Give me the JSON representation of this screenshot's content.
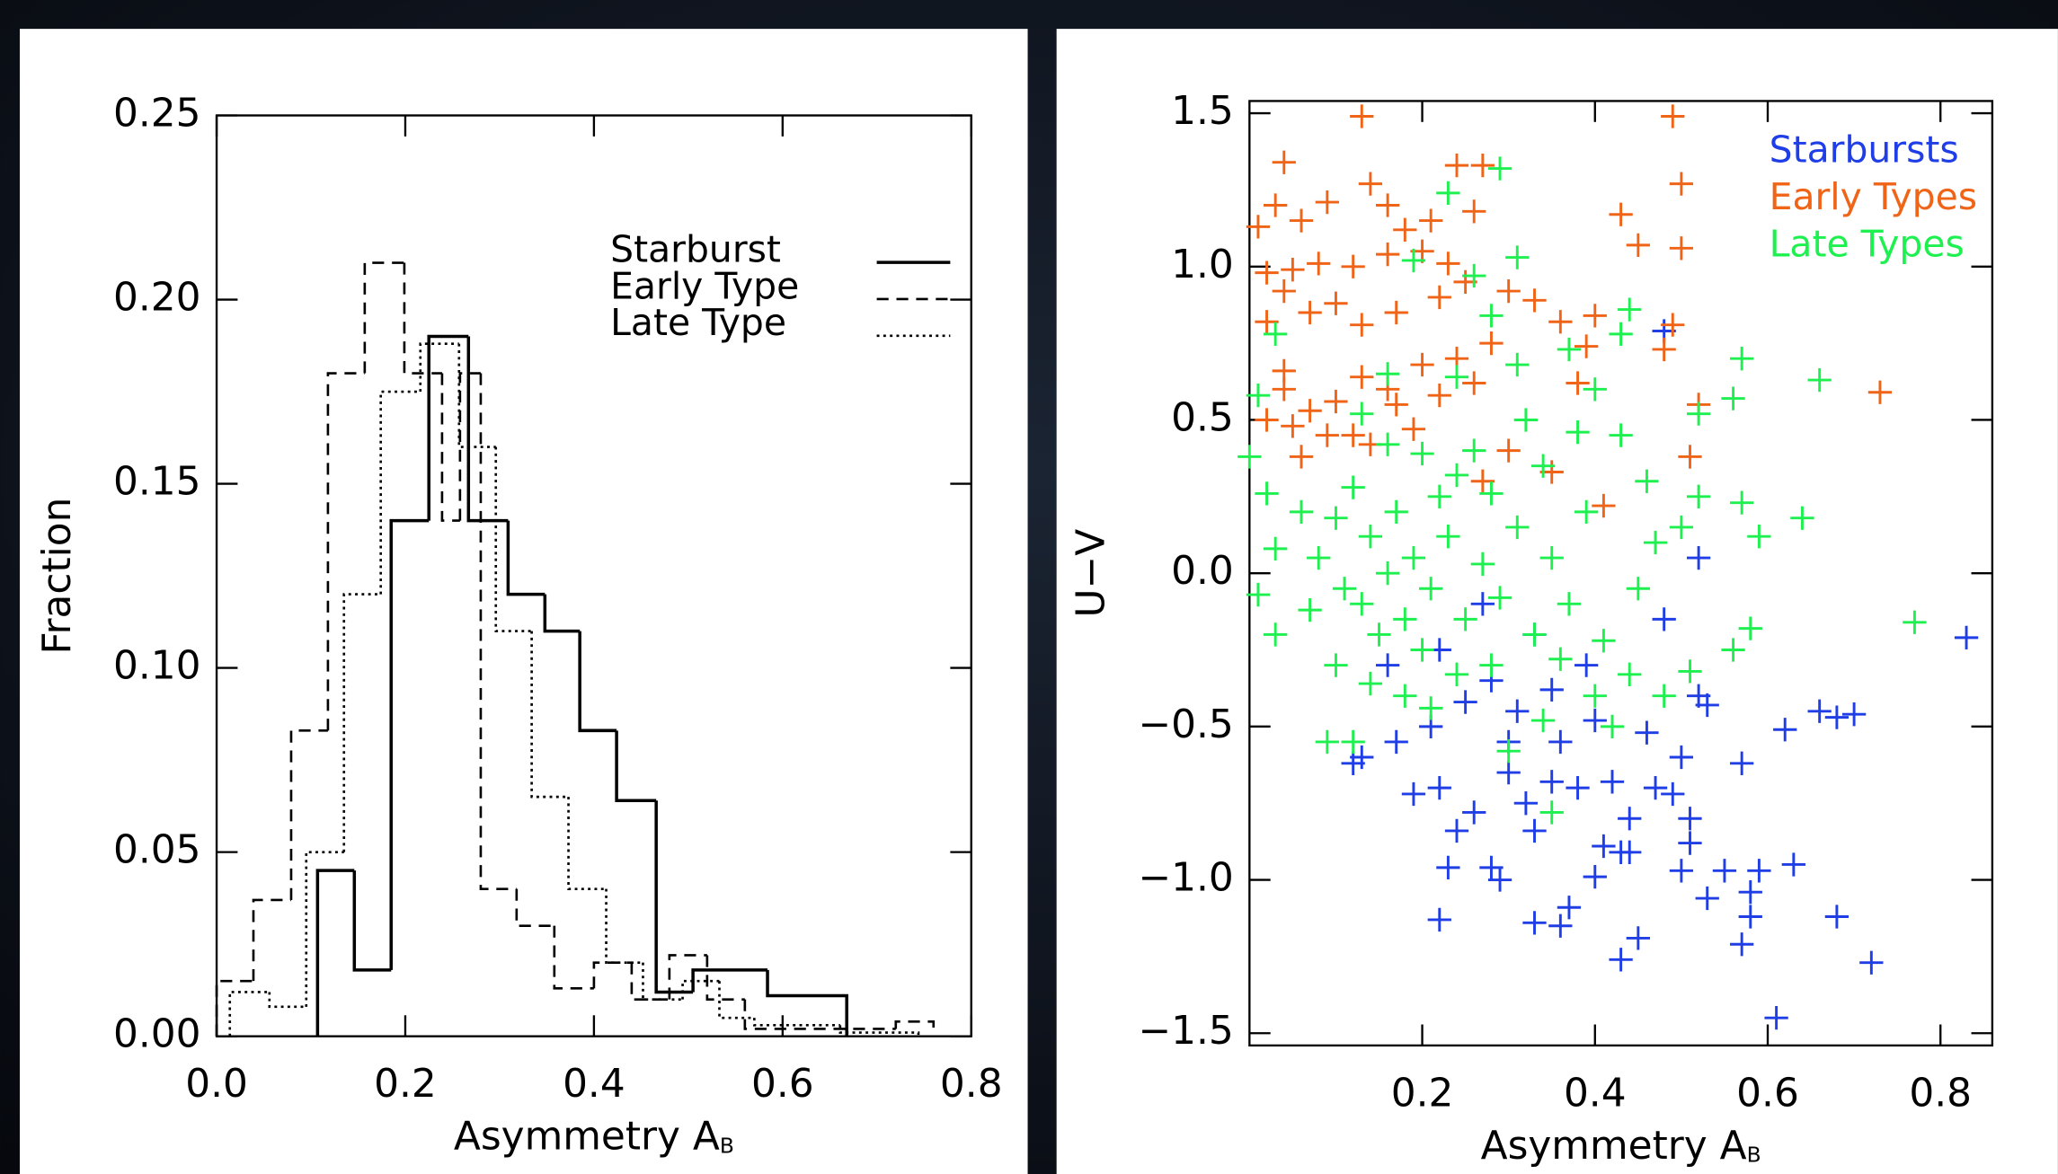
{
  "chart_data": [
    {
      "type": "histogram",
      "xlabel": "Asymmetry A",
      "xlabel_subscript": "B",
      "ylabel": "Fraction",
      "xlim": [
        0,
        0.8
      ],
      "ylim": [
        0,
        0.25
      ],
      "xticks": [
        {
          "value": 0,
          "label": "0.0"
        },
        0.2,
        0.4,
        0.6,
        0.8
      ],
      "yticks": [
        {
          "value": 0,
          "label": "0.00"
        },
        0.05,
        {
          "value": 0.1,
          "label": "0.10"
        },
        0.15,
        {
          "value": 0.2,
          "label": "0.20"
        },
        0.25
      ],
      "legend": "upper right",
      "series": [
        {
          "name": "Starburst",
          "color": "#000000",
          "style": "solid",
          "bins": [
            0.107,
            0.146,
            0.185,
            0.225,
            0.267,
            0.309,
            0.348,
            0.385,
            0.424,
            0.466,
            0.505,
            0.584,
            0.668
          ],
          "values": [
            0.045,
            0.018,
            0.14,
            0.19,
            0.14,
            0.12,
            0.11,
            0.083,
            0.064,
            0.012,
            0.018,
            0.011
          ]
        },
        {
          "name": "Early Type",
          "color": "#000000",
          "style": "dashed",
          "bins": [
            0,
            0.039,
            0.079,
            0.118,
            0.157,
            0.199,
            0.239,
            0.258,
            0.28,
            0.318,
            0.358,
            0.4,
            0.44,
            0.48,
            0.52,
            0.56,
            0.72,
            0.76
          ],
          "values": [
            0.015,
            0.037,
            0.083,
            0.18,
            0.21,
            0.18,
            0.14,
            0.18,
            0.04,
            0.03,
            0.013,
            0.02,
            0.01,
            0.022,
            0.01,
            0.002,
            0.004
          ]
        },
        {
          "name": "Late Type",
          "color": "#000000",
          "style": "dotted",
          "bins": [
            0.014,
            0.056,
            0.095,
            0.135,
            0.174,
            0.216,
            0.257,
            0.296,
            0.334,
            0.373,
            0.413,
            0.452,
            0.494,
            0.533,
            0.57,
            0.661,
            0.744
          ],
          "values": [
            0.012,
            0.008,
            0.05,
            0.12,
            0.175,
            0.188,
            0.16,
            0.11,
            0.065,
            0.04,
            0.02,
            0.01,
            0.015,
            0.005,
            0.003,
            0.001
          ]
        }
      ]
    },
    {
      "type": "scatter",
      "xlabel": "Asymmetry A",
      "xlabel_subscript": "B",
      "ylabel": "U−V",
      "xlim": [
        0,
        0.86
      ],
      "ylim": [
        -1.54,
        1.54
      ],
      "xticks": [
        0.2,
        0.4,
        0.6,
        0.8
      ],
      "yticks": [
        {
          "value": -1.5,
          "label": "−1.5"
        },
        {
          "value": -1,
          "label": "−1.0"
        },
        {
          "value": -0.5,
          "label": "−0.5"
        },
        {
          "value": 0,
          "label": "0.0"
        },
        0.5,
        {
          "value": 1,
          "label": "1.0"
        },
        1.5
      ],
      "legend": "upper right",
      "series": [
        {
          "name": "Starbursts",
          "color": "#1f3ee6",
          "x": [
            0.83,
            0.61,
            0.72,
            0.68,
            0.57,
            0.58,
            0.58,
            0.59,
            0.63,
            0.55,
            0.66,
            0.68,
            0.7,
            0.62,
            0.57,
            0.53,
            0.5,
            0.51,
            0.45,
            0.43,
            0.43,
            0.44,
            0.4,
            0.41,
            0.44,
            0.37,
            0.36,
            0.33,
            0.29,
            0.28,
            0.23,
            0.22,
            0.24,
            0.22,
            0.19,
            0.26,
            0.3,
            0.32,
            0.33,
            0.35,
            0.38,
            0.42,
            0.47,
            0.49,
            0.51,
            0.5,
            0.46,
            0.52,
            0.53,
            0.52,
            0.48,
            0.48,
            0.13,
            0.12,
            0.17,
            0.21,
            0.25,
            0.28,
            0.31,
            0.35,
            0.39,
            0.33,
            0.27,
            0.22,
            0.36,
            0.4,
            0.16,
            0.3
          ],
          "y": [
            -0.21,
            -1.45,
            -1.27,
            -1.12,
            -1.21,
            -1.12,
            -1.04,
            -0.97,
            -0.95,
            -0.97,
            -0.45,
            -0.47,
            -0.46,
            -0.51,
            -0.62,
            -1.06,
            -0.97,
            -0.88,
            -1.19,
            -1.26,
            -0.91,
            -0.91,
            -0.99,
            -0.89,
            -0.8,
            -1.09,
            -1.15,
            -1.14,
            -1.0,
            -0.96,
            -0.96,
            -1.13,
            -0.84,
            -0.7,
            -0.72,
            -0.78,
            -0.65,
            -0.75,
            -0.84,
            -0.68,
            -0.7,
            -0.68,
            -0.7,
            -0.72,
            -0.8,
            -0.6,
            -0.52,
            -0.4,
            -0.43,
            0.05,
            -0.15,
            0.79,
            -0.6,
            -0.62,
            -0.55,
            -0.5,
            -0.42,
            -0.35,
            -0.45,
            -0.38,
            -0.3,
            -0.2,
            -0.1,
            -0.25,
            -0.55,
            -0.48,
            -0.3,
            -0.55
          ]
        },
        {
          "name": "Early Types",
          "color": "#f06418",
          "x": [
            0.04,
            0.13,
            0.49,
            0.03,
            0.01,
            0.06,
            0.09,
            0.14,
            0.16,
            0.18,
            0.21,
            0.24,
            0.27,
            0.26,
            0.23,
            0.2,
            0.16,
            0.12,
            0.08,
            0.05,
            0.02,
            0.04,
            0.07,
            0.1,
            0.13,
            0.17,
            0.22,
            0.25,
            0.3,
            0.33,
            0.36,
            0.28,
            0.24,
            0.2,
            0.16,
            0.13,
            0.1,
            0.07,
            0.04,
            0.02,
            0.06,
            0.12,
            0.17,
            0.22,
            0.26,
            0.3,
            0.35,
            0.41,
            0.45,
            0.5,
            0.43,
            0.5,
            0.49,
            0.48,
            0.51,
            0.73,
            0.52,
            0.39,
            0.38,
            0.4,
            0.02,
            0.04,
            0.05,
            0.09,
            0.14,
            0.19,
            0.27
          ],
          "y": [
            1.34,
            1.49,
            1.49,
            1.2,
            1.13,
            1.15,
            1.21,
            1.27,
            1.2,
            1.12,
            1.15,
            1.33,
            1.33,
            1.18,
            1.01,
            1.05,
            1.04,
            1.0,
            1.01,
            0.99,
            0.98,
            0.92,
            0.85,
            0.88,
            0.81,
            0.85,
            0.9,
            0.95,
            0.92,
            0.89,
            0.82,
            0.75,
            0.7,
            0.68,
            0.6,
            0.64,
            0.56,
            0.53,
            0.6,
            0.5,
            0.38,
            0.45,
            0.55,
            0.58,
            0.62,
            0.4,
            0.33,
            0.22,
            1.07,
            1.27,
            1.17,
            1.06,
            0.81,
            0.73,
            0.38,
            0.59,
            0.55,
            0.74,
            0.62,
            0.84,
            0.82,
            0.66,
            0.48,
            0.45,
            0.42,
            0.47,
            0.3
          ]
        },
        {
          "name": "Late Types",
          "color": "#1ef050",
          "x": [
            0.29,
            0.23,
            0.19,
            0.26,
            0.31,
            0.28,
            0.03,
            0.01,
            0.0,
            0.02,
            0.03,
            0.01,
            0.03,
            0.07,
            0.1,
            0.09,
            0.12,
            0.44,
            0.43,
            0.37,
            0.31,
            0.24,
            0.16,
            0.13,
            0.16,
            0.2,
            0.24,
            0.28,
            0.34,
            0.38,
            0.43,
            0.46,
            0.5,
            0.52,
            0.57,
            0.56,
            0.52,
            0.66,
            0.64,
            0.59,
            0.57,
            0.77,
            0.58,
            0.56,
            0.51,
            0.44,
            0.4,
            0.34,
            0.3,
            0.35,
            0.21,
            0.18,
            0.14,
            0.08,
            0.11,
            0.14,
            0.17,
            0.19,
            0.21,
            0.23,
            0.25,
            0.27,
            0.29,
            0.31,
            0.33,
            0.35,
            0.37,
            0.39,
            0.41,
            0.18,
            0.15,
            0.22,
            0.26,
            0.12,
            0.1,
            0.06,
            0.28,
            0.24,
            0.36,
            0.45,
            0.47,
            0.2,
            0.16,
            0.13,
            0.32,
            0.4,
            0.48,
            0.42
          ],
          "y": [
            1.32,
            1.24,
            1.02,
            0.97,
            1.03,
            0.84,
            0.78,
            0.58,
            0.38,
            0.26,
            0.08,
            -0.07,
            -0.2,
            -0.12,
            -0.3,
            -0.55,
            -0.55,
            0.86,
            0.78,
            0.73,
            0.68,
            0.64,
            0.65,
            0.52,
            0.42,
            0.39,
            0.32,
            0.26,
            0.35,
            0.46,
            0.45,
            0.3,
            0.15,
            0.25,
            0.7,
            0.57,
            0.52,
            0.63,
            0.18,
            0.12,
            0.23,
            -0.16,
            -0.18,
            -0.25,
            -0.32,
            -0.33,
            -0.4,
            -0.48,
            -0.58,
            -0.78,
            -0.44,
            -0.4,
            -0.36,
            0.05,
            -0.05,
            0.12,
            0.2,
            0.05,
            -0.05,
            0.12,
            -0.15,
            0.03,
            -0.08,
            0.15,
            -0.2,
            0.05,
            -0.1,
            0.2,
            -0.22,
            -0.15,
            -0.2,
            0.25,
            0.4,
            0.28,
            0.18,
            0.2,
            -0.3,
            -0.33,
            -0.28,
            -0.05,
            0.1,
            -0.25,
            0.0,
            -0.1,
            0.5,
            0.6,
            -0.4,
            -0.5
          ]
        }
      ]
    }
  ]
}
